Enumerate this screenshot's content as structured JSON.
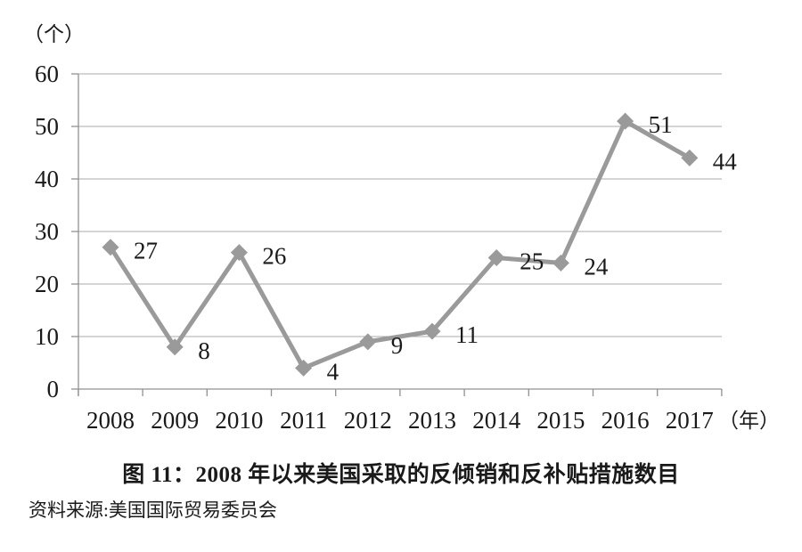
{
  "chart_data": {
    "type": "line",
    "title": "图 11：2008 年以来美国采取的反倾销和反补贴措施数目",
    "source": "资料来源:美国国际贸易委员会",
    "y_unit_label": "（个）",
    "x_unit_label": "（年）",
    "categories": [
      "2008",
      "2009",
      "2010",
      "2011",
      "2012",
      "2013",
      "2014",
      "2015",
      "2016",
      "2017"
    ],
    "values": [
      27,
      8,
      26,
      4,
      9,
      11,
      25,
      24,
      51,
      44
    ],
    "yticks": [
      0,
      10,
      20,
      30,
      40,
      50,
      60
    ],
    "ylim": [
      0,
      60
    ],
    "grid": "horizontal-gridlines-on",
    "legend": "none",
    "marker": "diamond",
    "colors": {
      "series_line": "#9a9a9a",
      "marker_fill": "#9a9a9a",
      "gridline": "#ababab",
      "axis": "#919191",
      "text": "#1a1a1a",
      "background": "#ffffff"
    }
  }
}
